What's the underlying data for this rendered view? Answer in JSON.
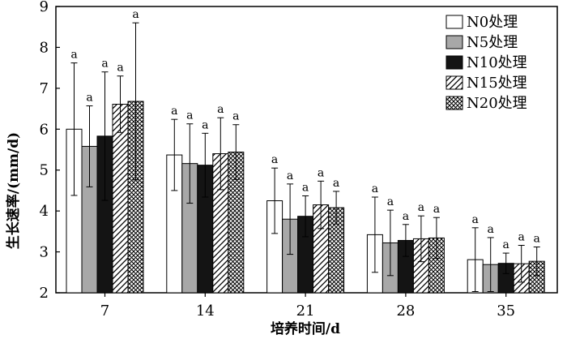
{
  "chart_data": {
    "type": "bar",
    "title": "",
    "xlabel": "培养时间/d",
    "ylabel": "生长速率/(mm/d)",
    "ylim": [
      2,
      9
    ],
    "yticks": [
      2,
      3,
      4,
      5,
      6,
      7,
      8,
      9
    ],
    "categories": [
      "7",
      "14",
      "21",
      "28",
      "35"
    ],
    "legend_position": "top-right",
    "series": [
      {
        "name": "N0处理",
        "pattern": "white",
        "values": [
          6.0,
          5.37,
          4.25,
          3.42,
          2.81
        ],
        "errors": [
          1.62,
          0.87,
          0.8,
          0.92,
          0.78
        ],
        "labels": [
          "a",
          "a",
          "a",
          "a",
          "a"
        ]
      },
      {
        "name": "N5处理",
        "pattern": "gray",
        "values": [
          5.58,
          5.16,
          3.8,
          3.22,
          2.69
        ],
        "errors": [
          0.99,
          0.97,
          0.86,
          0.8,
          0.66
        ],
        "labels": [
          "a",
          "a",
          "a",
          "a",
          "a"
        ]
      },
      {
        "name": "N10处理",
        "pattern": "black",
        "values": [
          5.83,
          5.12,
          3.87,
          3.28,
          2.72
        ],
        "errors": [
          1.57,
          0.78,
          0.5,
          0.39,
          0.25
        ],
        "labels": [
          "a",
          "a",
          "a",
          "a",
          "a"
        ]
      },
      {
        "name": "N15处理",
        "pattern": "hatch",
        "values": [
          6.61,
          5.4,
          4.15,
          3.32,
          2.71
        ],
        "errors": [
          0.69,
          0.88,
          0.58,
          0.56,
          0.45
        ],
        "labels": [
          "a",
          "a",
          "a",
          "a",
          "a"
        ]
      },
      {
        "name": "N20处理",
        "pattern": "cross",
        "values": [
          6.68,
          5.44,
          4.08,
          3.34,
          2.77
        ],
        "errors": [
          1.92,
          0.67,
          0.4,
          0.5,
          0.35
        ],
        "labels": [
          "a",
          "a",
          "a",
          "a",
          "a"
        ]
      }
    ]
  }
}
